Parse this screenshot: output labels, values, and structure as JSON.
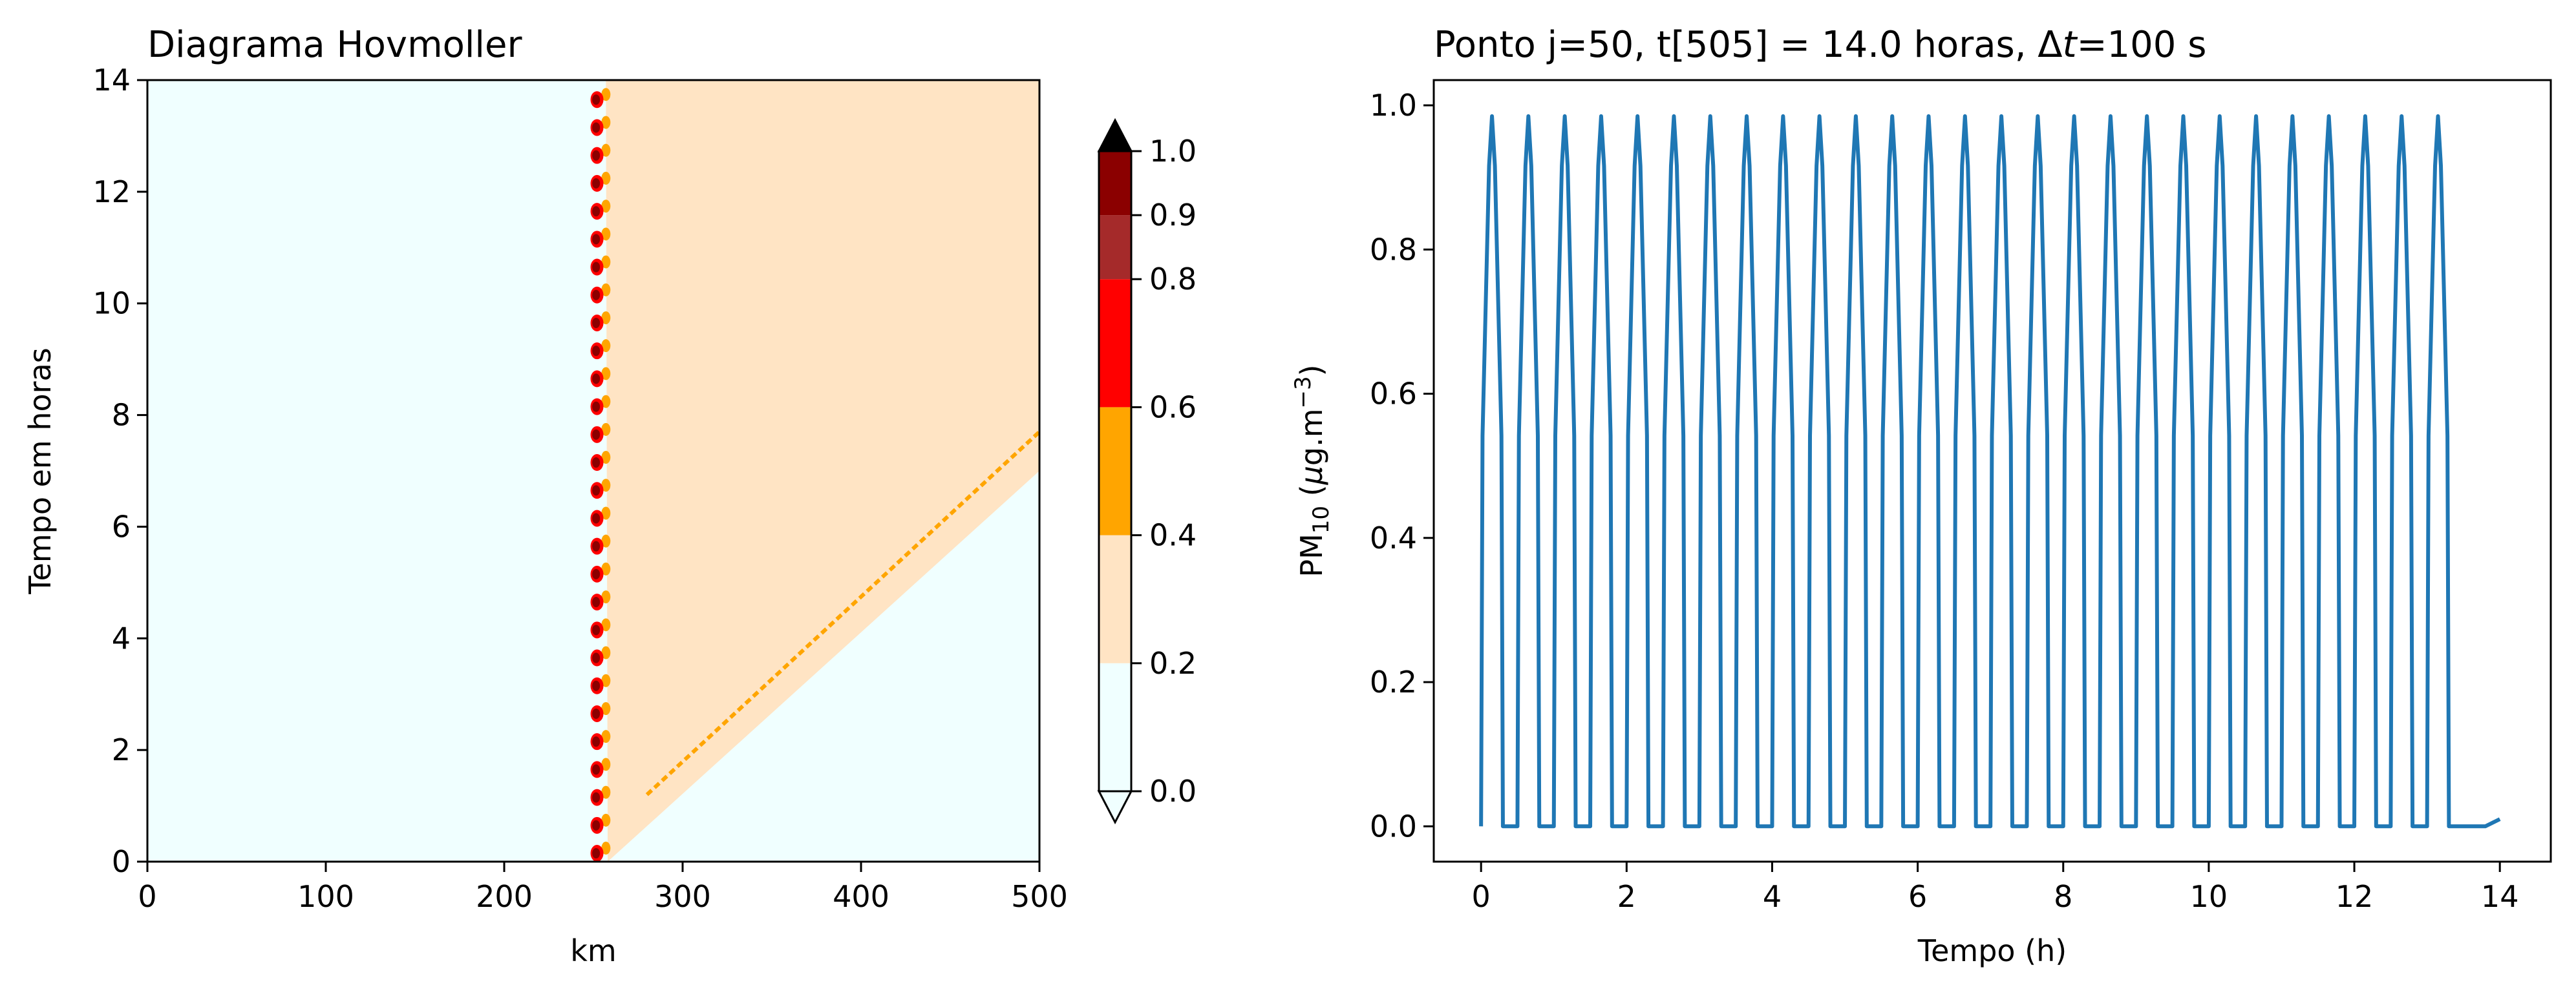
{
  "chart_data": [
    {
      "type": "heatmap",
      "title": "Diagrama Hovmoller",
      "xlabel": "km",
      "ylabel": "Tempo em horas",
      "xlim": [
        0,
        500
      ],
      "ylim": [
        0,
        14
      ],
      "xticks": [
        "0",
        "100",
        "200",
        "300",
        "400",
        "500"
      ],
      "yticks": [
        "0",
        "2",
        "4",
        "6",
        "8",
        "10",
        "12",
        "14"
      ],
      "x_tick_values": [
        0,
        100,
        200,
        300,
        400,
        500
      ],
      "y_tick_values": [
        0,
        2,
        4,
        6,
        8,
        10,
        12,
        14
      ],
      "regions": {
        "background_level": "0.0-0.2",
        "plume_level": "0.2-0.4",
        "source_x_km": 250,
        "source_pulse_period_h": 0.5,
        "front_start": {
          "x_km": 258,
          "t_h": 0.0
        },
        "front_end": {
          "x_km": 500,
          "t_h": 7.0
        },
        "peak_line_start": {
          "x_km": 280,
          "t_h": 1.2
        },
        "peak_line_end": {
          "x_km": 500,
          "t_h": 7.7
        }
      },
      "colorbar": {
        "levels": [
          0.0,
          0.2,
          0.4,
          0.6,
          0.8,
          0.9,
          1.0
        ],
        "tick_labels": [
          "0.0",
          "0.2",
          "0.4",
          "0.6",
          "0.8",
          "0.9",
          "1.0"
        ],
        "colors": [
          "#f0ffff",
          "#ffe4c4",
          "#ffa500",
          "#ff0000",
          "#a52a2a",
          "#8b0000"
        ],
        "over_color": "#000000",
        "under_color": "#f0ffff",
        "extend": "both"
      }
    },
    {
      "type": "line",
      "title": "Ponto j=50, t[505] = 14.0 horas, Δt=100 s",
      "title_parts": {
        "main": "Ponto j=50, t[505] = 14.0 horas, Δ",
        "var": "t",
        "tail": "=100 s"
      },
      "xlabel": "Tempo (h)",
      "ylabel": "PM10 (μg.m−3)",
      "ylabel_parts": {
        "a": "PM",
        "sub": "10",
        "b": " (",
        "mu": "μ",
        "c": "g.m",
        "sup": "−3",
        "d": ")"
      },
      "xlim": [
        -0.65,
        14.7
      ],
      "ylim": [
        -0.049,
        1.035
      ],
      "xticks": [
        "0",
        "2",
        "4",
        "6",
        "8",
        "10",
        "12",
        "14"
      ],
      "yticks": [
        "0.0",
        "0.2",
        "0.4",
        "0.6",
        "0.8",
        "1.0"
      ],
      "x_tick_values": [
        0,
        2,
        4,
        6,
        8,
        10,
        12,
        14
      ],
      "y_tick_values": [
        0.0,
        0.2,
        0.4,
        0.6,
        0.8,
        1.0
      ],
      "series": [
        {
          "color": "#1f77b4",
          "pulse": {
            "period_h": 0.5,
            "rise_start_h": 0.0,
            "peak_h": 0.15,
            "fall_end_h": 0.3,
            "peak_value": 0.985,
            "pulses": 27
          },
          "tail": {
            "x": [
              13.8,
              14.0
            ],
            "y": [
              0.0,
              0.01
            ]
          }
        }
      ]
    }
  ]
}
